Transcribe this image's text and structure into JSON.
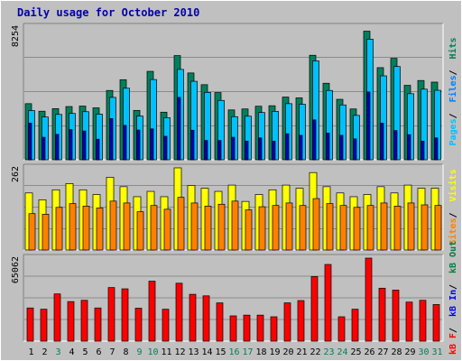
{
  "title": "Daily usage for October 2010",
  "colors": {
    "hits": "#00805c",
    "files": "#0080ff",
    "pages": "#00c0ff",
    "visits": "#ffff00",
    "sites": "#ff8000",
    "kbin": "#0000ff",
    "kbout": "#008040",
    "kbf": "#ff0000",
    "weekday_label": "#000000",
    "weekend_label": "#00805c",
    "panel_bg": "#c0c0c0",
    "grid": "#000000"
  },
  "chart_data": [
    {
      "type": "bar",
      "panel": "hits-files-pages",
      "ymax_label": "8254",
      "ylim": [
        0,
        8254
      ],
      "legend": [
        {
          "label": "Pages",
          "color": "#00c0ff"
        },
        {
          "label": "Files",
          "color": "#0080ff"
        },
        {
          "label": "Hits",
          "color": "#00805c"
        }
      ],
      "categories": [
        "1",
        "2",
        "3",
        "4",
        "5",
        "6",
        "7",
        "8",
        "9",
        "10",
        "11",
        "12",
        "13",
        "14",
        "15",
        "16",
        "17",
        "18",
        "19",
        "20",
        "21",
        "22",
        "23",
        "24",
        "25",
        "26",
        "27",
        "28",
        "29",
        "30",
        "31"
      ],
      "series": [
        {
          "name": "Hits",
          "values": [
            3490,
            3020,
            3180,
            3310,
            3340,
            3230,
            4310,
            4980,
            3070,
            5500,
            2960,
            6480,
            5400,
            4670,
            4180,
            3100,
            3160,
            3330,
            3360,
            3900,
            3850,
            6500,
            4760,
            3760,
            3160,
            8000,
            5730,
            6310,
            4630,
            4930,
            4830
          ]
        },
        {
          "name": "Files",
          "values": [
            3060,
            2660,
            2820,
            2880,
            2990,
            2840,
            3880,
            4450,
            2720,
            4990,
            2620,
            5620,
            4880,
            4190,
            3690,
            2680,
            2710,
            2940,
            3010,
            3490,
            3450,
            6150,
            4310,
            3410,
            2760,
            7500,
            5220,
            5800,
            4110,
            4390,
            4320
          ]
        },
        {
          "name": "Pages",
          "values": [
            2280,
            1400,
            1580,
            1880,
            1790,
            1280,
            2560,
            2140,
            1850,
            1920,
            1460,
            3880,
            1840,
            1200,
            1200,
            1400,
            1160,
            1360,
            1160,
            1620,
            1520,
            2480,
            1660,
            1520,
            1300,
            4220,
            2280,
            1820,
            1560,
            1160,
            1360
          ]
        }
      ]
    },
    {
      "type": "bar",
      "panel": "visits-sites",
      "ymax_label": "262",
      "ylim": [
        0,
        262
      ],
      "legend": [
        {
          "label": "Sites",
          "color": "#ff8000"
        },
        {
          "label": "Visits",
          "color": "#ffff00"
        }
      ],
      "categories": [
        "1",
        "2",
        "3",
        "4",
        "5",
        "6",
        "7",
        "8",
        "9",
        "10",
        "11",
        "12",
        "13",
        "14",
        "15",
        "16",
        "17",
        "18",
        "19",
        "20",
        "21",
        "22",
        "23",
        "24",
        "25",
        "26",
        "27",
        "28",
        "29",
        "30",
        "31"
      ],
      "series": [
        {
          "name": "Visits",
          "values": [
            182,
            160,
            192,
            212,
            192,
            177,
            232,
            202,
            170,
            187,
            170,
            262,
            206,
            197,
            187,
            207,
            155,
            177,
            192,
            207,
            197,
            247,
            202,
            182,
            170,
            177,
            202,
            182,
            207,
            197,
            197
          ]
        },
        {
          "name": "Sites",
          "values": [
            116,
            114,
            136,
            148,
            140,
            134,
            156,
            150,
            122,
            142,
            130,
            168,
            150,
            140,
            146,
            156,
            128,
            138,
            142,
            150,
            142,
            164,
            148,
            142,
            136,
            142,
            150,
            140,
            150,
            144,
            142
          ]
        }
      ]
    },
    {
      "type": "bar",
      "panel": "kb",
      "ymax_label": "65062",
      "ylim": [
        0,
        65062
      ],
      "legend": [
        {
          "label": "kB F",
          "color": "#ff0000"
        },
        {
          "label": "kB In",
          "color": "#0000ff"
        },
        {
          "label": "kB Out",
          "color": "#008040"
        }
      ],
      "categories": [
        "1",
        "2",
        "3",
        "4",
        "5",
        "6",
        "7",
        "8",
        "9",
        "10",
        "11",
        "12",
        "13",
        "14",
        "15",
        "16",
        "17",
        "18",
        "19",
        "20",
        "21",
        "22",
        "23",
        "24",
        "25",
        "26",
        "27",
        "28",
        "29",
        "30",
        "31"
      ],
      "series": [
        {
          "name": "kB F",
          "values": [
            26000,
            25000,
            37000,
            31000,
            32000,
            26000,
            42000,
            41000,
            25800,
            47000,
            25000,
            45400,
            36700,
            35500,
            30000,
            19800,
            20400,
            20400,
            19100,
            30000,
            31800,
            50600,
            60100,
            19100,
            25000,
            65062,
            41500,
            40000,
            30600,
            32000,
            28700
          ]
        }
      ]
    }
  ],
  "weekend_days": [
    3,
    9,
    10,
    16,
    17,
    23,
    24,
    30,
    31
  ]
}
